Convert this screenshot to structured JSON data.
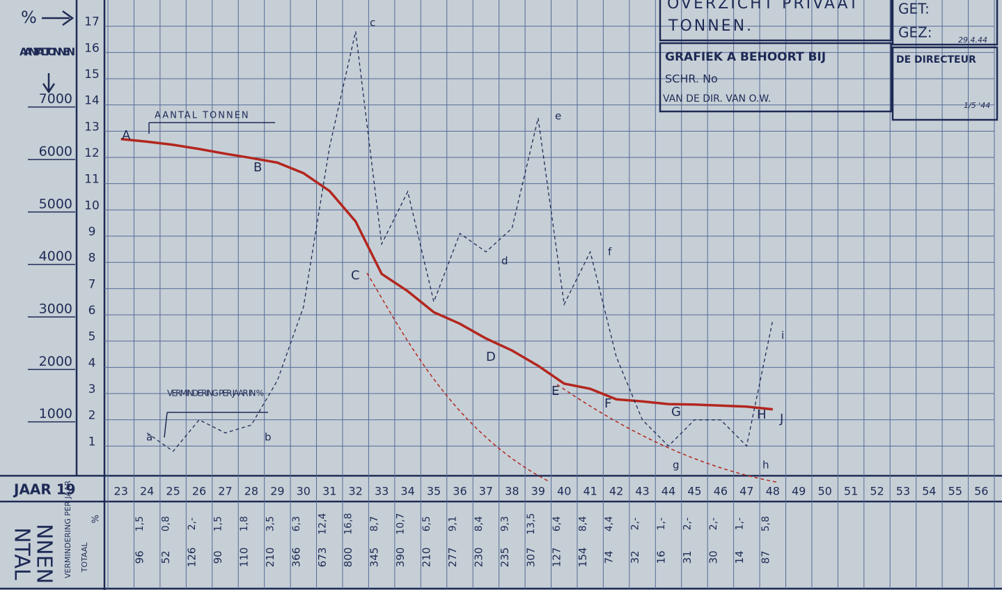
{
  "chart_data": {
    "type": "line",
    "title": "OVERZICHT PRIVAAT",
    "subtitle": "TONNEN.",
    "x_label": "JAAR 19",
    "y_label": "AANTAL TONNEN",
    "y2_label": "%",
    "categories": [
      "23",
      "24",
      "25",
      "26",
      "27",
      "28",
      "29",
      "30",
      "31",
      "32",
      "33",
      "34",
      "35",
      "36",
      "37",
      "38",
      "39",
      "40",
      "41",
      "42",
      "43",
      "44",
      "45",
      "46",
      "47",
      "48",
      "49",
      "50",
      "51",
      "52",
      "53",
      "54",
      "55",
      "56"
    ],
    "series": [
      {
        "name": "AANTAL TONNEN",
        "color": "#b3261e",
        "values": [
          6350,
          6300,
          6240,
          6160,
          6070,
          5990,
          5900,
          5700,
          5360,
          4780,
          3780,
          3450,
          3050,
          2830,
          2550,
          2320,
          2030,
          1690,
          1590,
          1390,
          1350,
          1300,
          1290,
          1270,
          1250,
          1200,
          null,
          null,
          null,
          null,
          null,
          null,
          null,
          null
        ]
      },
      {
        "name": "VERMINDERING PER JAAR IN %",
        "color": "#1e2a55",
        "axis": "y2",
        "values": [
          null,
          1.5,
          0.8,
          2,
          1.5,
          1.8,
          3.5,
          6.3,
          12.4,
          16.8,
          8.7,
          10.7,
          6.5,
          9.1,
          8.4,
          9.3,
          13.5,
          6.4,
          8.4,
          4.4,
          2,
          1,
          2,
          2,
          1,
          5.8,
          null,
          null,
          null,
          null,
          null,
          null,
          null,
          null
        ],
        "value_labels": [
          null,
          "1,5",
          "0,8",
          "2,-",
          "1,5",
          "1,8",
          "3,5",
          "6,3",
          "12,4",
          "16,8",
          "8,7",
          "10,7",
          "6,5",
          "9,1",
          "8,4",
          "9,3",
          "13,5",
          "6,4",
          "8,4",
          "4,4",
          "2,-",
          "1,-",
          "2,-",
          "2,-",
          "1,-",
          "5,8",
          null,
          null,
          null,
          null,
          null,
          null,
          null,
          null
        ]
      }
    ],
    "totals_label": "TOTAAL",
    "reduction_label": "VERMINDERING PER JAAR",
    "percent_label": "%",
    "totals": [
      null,
      96,
      52,
      126,
      90,
      110,
      210,
      366,
      673,
      800,
      345,
      390,
      210,
      277,
      230,
      235,
      307,
      127,
      154,
      74,
      32,
      16,
      31,
      30,
      14,
      87,
      null,
      null,
      null,
      null,
      null,
      null,
      null,
      null
    ],
    "ylim": [
      0,
      9000
    ],
    "yticks": [
      1000,
      2000,
      3000,
      4000,
      5000,
      6000,
      7000
    ],
    "y2lim": [
      0,
      18
    ],
    "y2ticks": [
      1,
      2,
      3,
      4,
      5,
      6,
      7,
      8,
      9,
      10,
      11,
      12,
      13,
      14,
      15,
      16,
      17
    ],
    "grid": true,
    "point_labels_upper": [
      "A",
      "B",
      "C",
      "D",
      "E",
      "F",
      "G",
      "H",
      "J"
    ],
    "point_labels_lower": [
      "a",
      "b",
      "c",
      "d",
      "e",
      "f",
      "g",
      "h",
      "i"
    ]
  },
  "document": {
    "grafiek": "GRAFIEK A BEHOORT BIJ",
    "schr": "SCHR. No",
    "dir": "VAN DE DIR. VAN O.W.",
    "get": "GET:",
    "gez": "GEZ:",
    "gez_date": "29.4.44",
    "directeur": "DE DIRECTEUR",
    "directeur_date": "1/5 '44",
    "side_a": "NTAL",
    "side_b": "NNEN"
  }
}
